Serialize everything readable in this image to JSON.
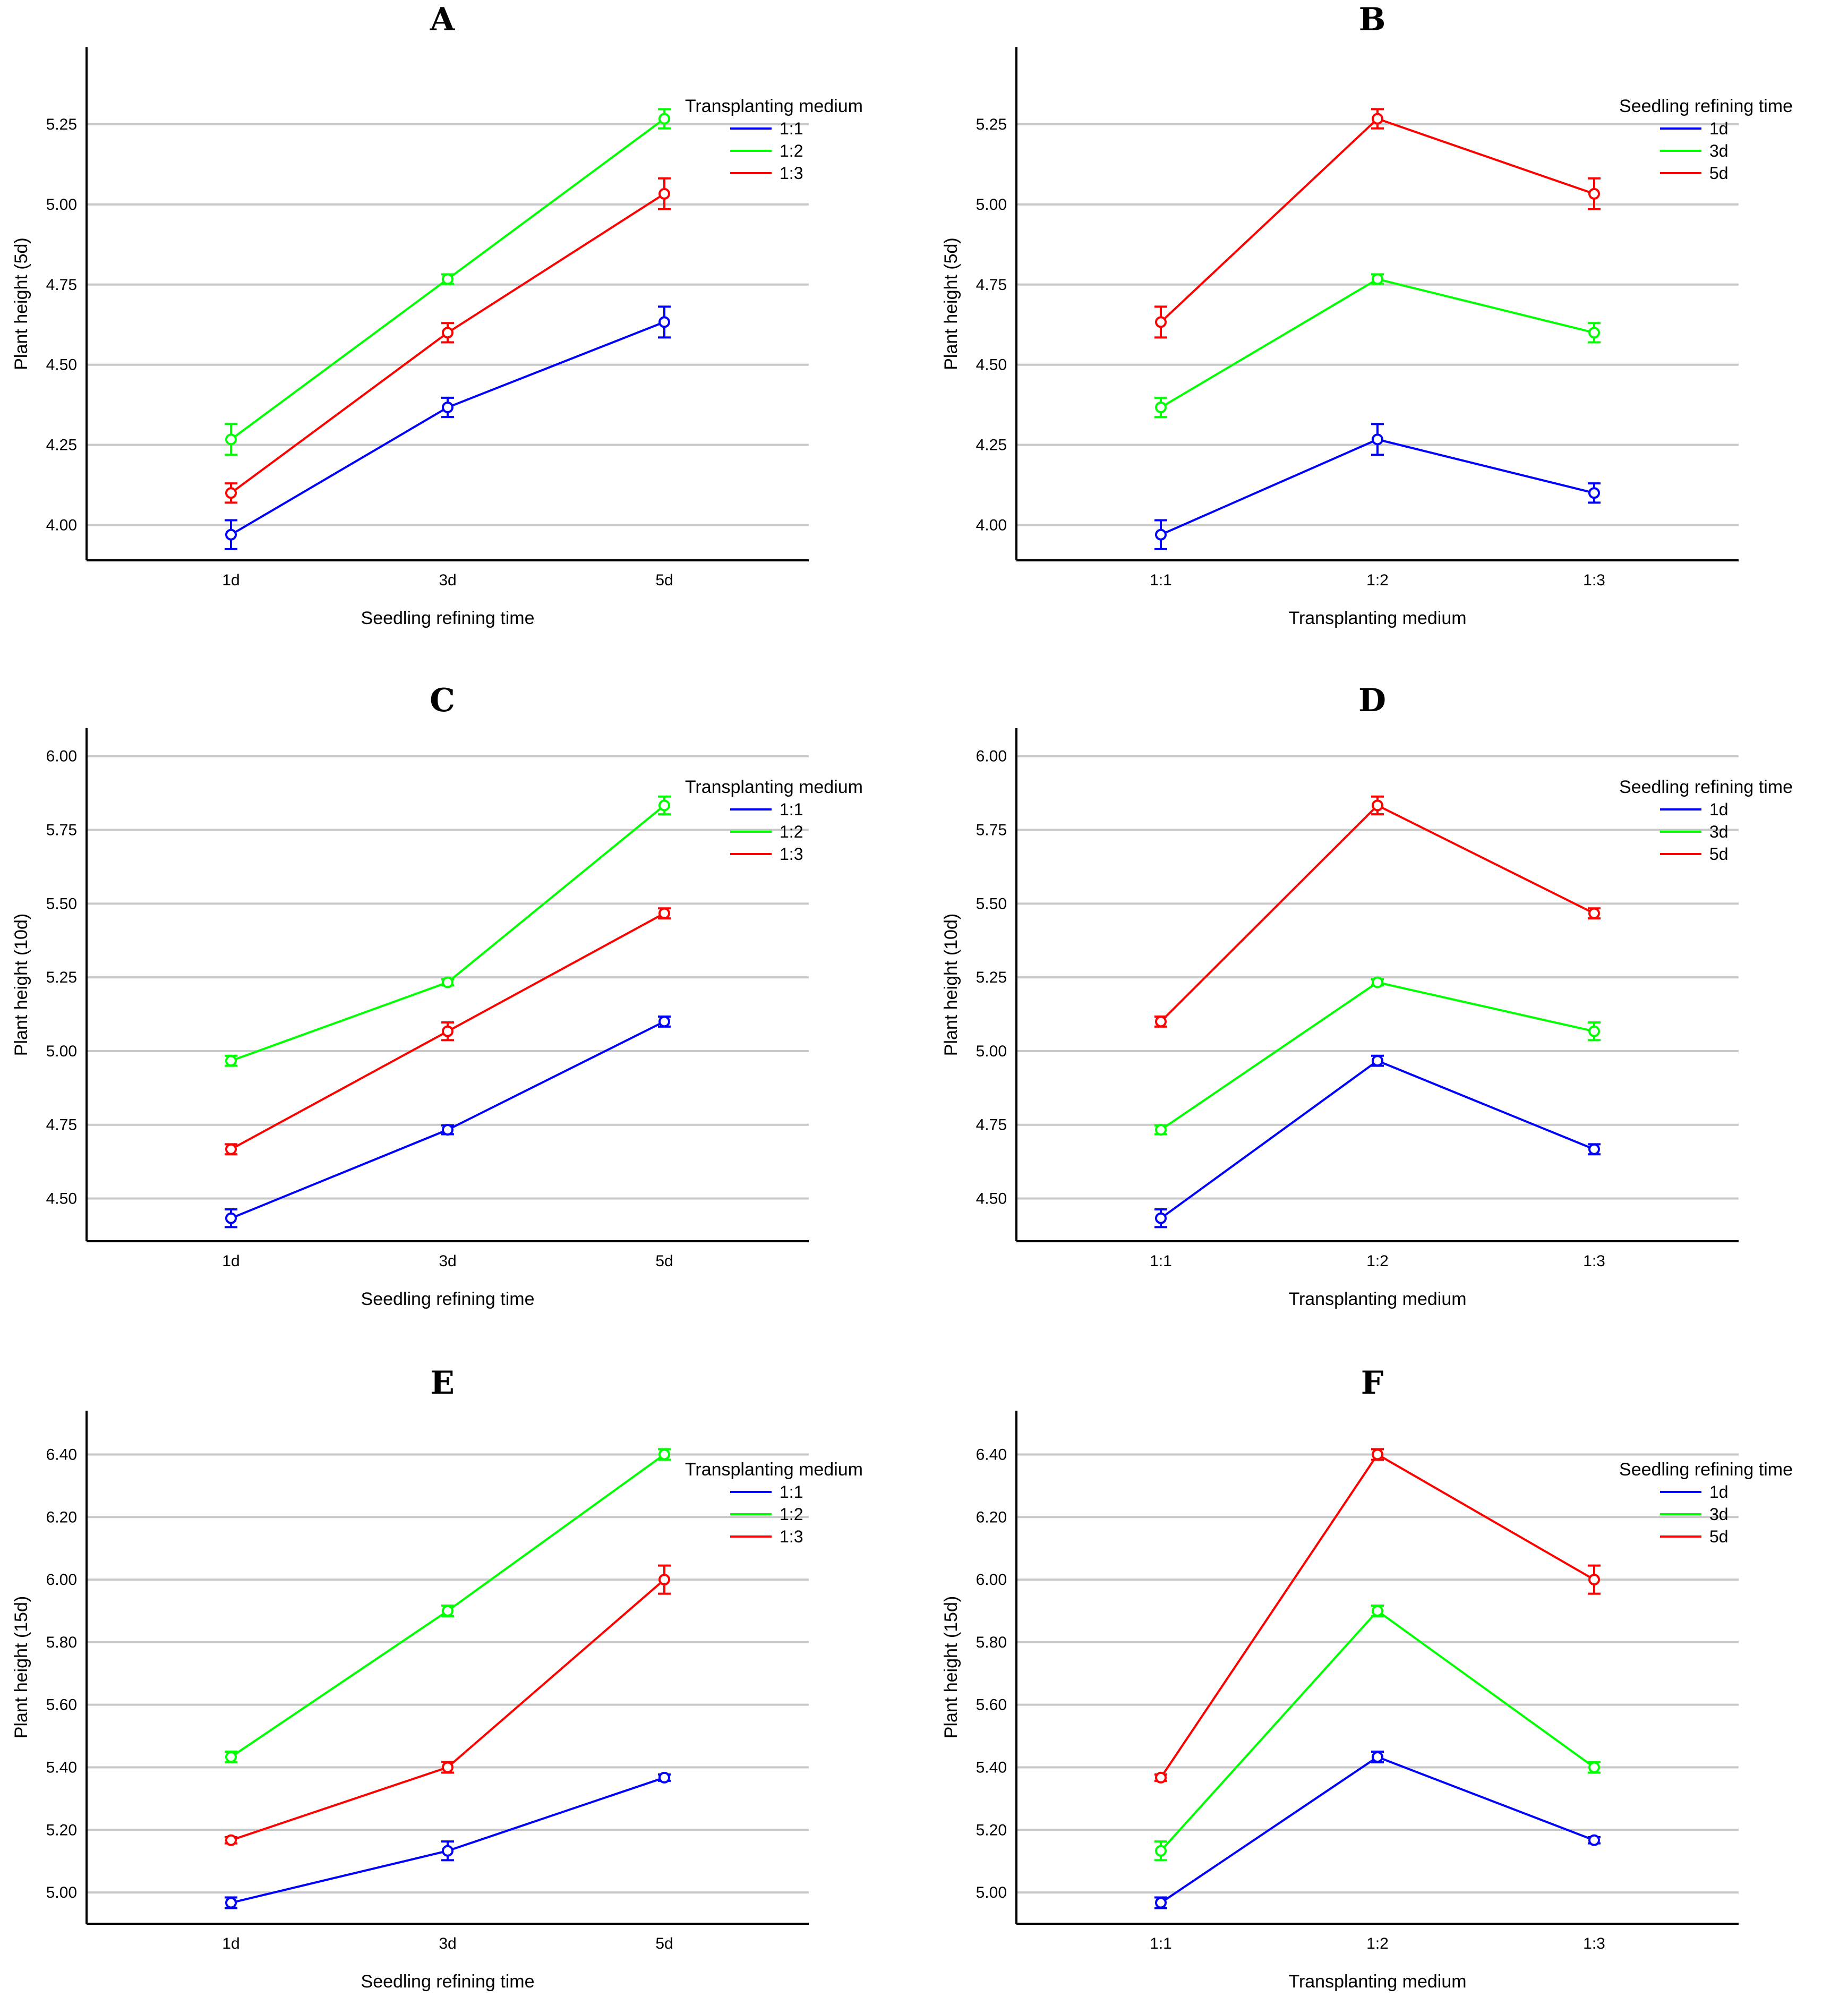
{
  "chart_data": [
    {
      "type": "line",
      "panel": "A",
      "xlabel": "Seedling refining time",
      "ylabel": "Plant height (5d)",
      "categories": [
        "1d",
        "3d",
        "5d"
      ],
      "legend_title": "Transplanting medium",
      "legend_position": "top-right",
      "ylim": [
        3.89,
        5.49
      ],
      "yticks": [
        4.0,
        4.25,
        4.5,
        4.75,
        5.0,
        5.25
      ],
      "yticklabels": [
        "4.00",
        "4.25",
        "4.50",
        "4.75",
        "5.00",
        "5.25"
      ],
      "grid": true,
      "series": [
        {
          "name": "1:1",
          "color": "#0000ff",
          "values": [
            3.97,
            4.367,
            4.633
          ],
          "err": [
            0.045,
            0.03,
            0.048
          ]
        },
        {
          "name": "1:2",
          "color": "#00ff00",
          "values": [
            4.267,
            4.767,
            5.267
          ],
          "err": [
            0.048,
            0.015,
            0.03
          ]
        },
        {
          "name": "1:3",
          "color": "#ff0000",
          "values": [
            4.1,
            4.6,
            5.033
          ],
          "err": [
            0.03,
            0.03,
            0.048
          ]
        }
      ]
    },
    {
      "type": "line",
      "panel": "B",
      "xlabel": "Transplanting medium",
      "ylabel": "Plant height (5d)",
      "categories": [
        "1:1",
        "1:2",
        "1:3"
      ],
      "legend_title": "Seedling refining time",
      "legend_position": "top-right",
      "ylim": [
        3.89,
        5.49
      ],
      "yticks": [
        4.0,
        4.25,
        4.5,
        4.75,
        5.0,
        5.25
      ],
      "yticklabels": [
        "4.00",
        "4.25",
        "4.50",
        "4.75",
        "5.00",
        "5.25"
      ],
      "grid": true,
      "series": [
        {
          "name": "1d",
          "color": "#0000ff",
          "values": [
            3.97,
            4.267,
            4.1
          ],
          "err": [
            0.045,
            0.048,
            0.03
          ]
        },
        {
          "name": "3d",
          "color": "#00ff00",
          "values": [
            4.367,
            4.767,
            4.6
          ],
          "err": [
            0.03,
            0.015,
            0.03
          ]
        },
        {
          "name": "5d",
          "color": "#ff0000",
          "values": [
            4.633,
            5.267,
            5.033
          ],
          "err": [
            0.048,
            0.03,
            0.048
          ]
        }
      ]
    },
    {
      "type": "line",
      "panel": "C",
      "xlabel": "Seedling refining time",
      "ylabel": "Plant height (10d)",
      "categories": [
        "1d",
        "3d",
        "5d"
      ],
      "legend_title": "Transplanting medium",
      "legend_position": "top-right",
      "ylim": [
        4.355,
        6.095
      ],
      "yticks": [
        4.5,
        4.75,
        5.0,
        5.25,
        5.5,
        5.75,
        6.0
      ],
      "yticklabels": [
        "4.50",
        "4.75",
        "5.00",
        "5.25",
        "5.50",
        "5.75",
        "6.00"
      ],
      "grid": true,
      "series": [
        {
          "name": "1:1",
          "color": "#0000ff",
          "values": [
            4.433,
            4.733,
            5.1
          ],
          "err": [
            0.03,
            0.015,
            0.017
          ]
        },
        {
          "name": "1:2",
          "color": "#00ff00",
          "values": [
            4.967,
            5.233,
            5.833
          ],
          "err": [
            0.017,
            0.01,
            0.03
          ]
        },
        {
          "name": "1:3",
          "color": "#ff0000",
          "values": [
            4.667,
            5.067,
            5.467
          ],
          "err": [
            0.017,
            0.03,
            0.017
          ]
        }
      ]
    },
    {
      "type": "line",
      "panel": "D",
      "xlabel": "Transplanting medium",
      "ylabel": "Plant height (10d)",
      "categories": [
        "1:1",
        "1:2",
        "1:3"
      ],
      "legend_title": "Seedling refining time",
      "legend_position": "top-right",
      "ylim": [
        4.355,
        6.095
      ],
      "yticks": [
        4.5,
        4.75,
        5.0,
        5.25,
        5.5,
        5.75,
        6.0
      ],
      "yticklabels": [
        "4.50",
        "4.75",
        "5.00",
        "5.25",
        "5.50",
        "5.75",
        "6.00"
      ],
      "grid": true,
      "series": [
        {
          "name": "1d",
          "color": "#0000ff",
          "values": [
            4.433,
            4.967,
            4.667
          ],
          "err": [
            0.03,
            0.017,
            0.017
          ]
        },
        {
          "name": "3d",
          "color": "#00ff00",
          "values": [
            4.733,
            5.233,
            5.067
          ],
          "err": [
            0.015,
            0.01,
            0.03
          ]
        },
        {
          "name": "5d",
          "color": "#ff0000",
          "values": [
            5.1,
            5.833,
            5.467
          ],
          "err": [
            0.017,
            0.03,
            0.017
          ]
        }
      ]
    },
    {
      "type": "line",
      "panel": "E",
      "xlabel": "Seedling refining time",
      "ylabel": "Plant height (15d)",
      "categories": [
        "1d",
        "3d",
        "5d"
      ],
      "legend_title": "Transplanting medium",
      "legend_position": "top-right",
      "ylim": [
        4.9,
        6.54
      ],
      "yticks": [
        5.0,
        5.2,
        5.4,
        5.6,
        5.8,
        6.0,
        6.2,
        6.4
      ],
      "yticklabels": [
        "5.00",
        "5.20",
        "5.40",
        "5.60",
        "5.80",
        "6.00",
        "6.20",
        "6.40"
      ],
      "grid": true,
      "series": [
        {
          "name": "1:1",
          "color": "#0000ff",
          "values": [
            4.967,
            5.133,
            5.367
          ],
          "err": [
            0.017,
            0.03,
            0.01
          ]
        },
        {
          "name": "1:2",
          "color": "#00ff00",
          "values": [
            5.433,
            5.9,
            6.4
          ],
          "err": [
            0.017,
            0.017,
            0.017
          ]
        },
        {
          "name": "1:3",
          "color": "#ff0000",
          "values": [
            5.167,
            5.4,
            6.0
          ],
          "err": [
            0.01,
            0.017,
            0.045
          ]
        }
      ]
    },
    {
      "type": "line",
      "panel": "F",
      "xlabel": "Transplanting medium",
      "ylabel": "Plant height (15d)",
      "categories": [
        "1:1",
        "1:2",
        "1:3"
      ],
      "legend_title": "Seedling refining time",
      "legend_position": "top-right",
      "ylim": [
        4.9,
        6.54
      ],
      "yticks": [
        5.0,
        5.2,
        5.4,
        5.6,
        5.8,
        6.0,
        6.2,
        6.4
      ],
      "yticklabels": [
        "5.00",
        "5.20",
        "5.40",
        "5.60",
        "5.80",
        "6.00",
        "6.20",
        "6.40"
      ],
      "grid": true,
      "series": [
        {
          "name": "1d",
          "color": "#0000ff",
          "values": [
            4.967,
            5.433,
            5.167
          ],
          "err": [
            0.017,
            0.017,
            0.01
          ]
        },
        {
          "name": "3d",
          "color": "#00ff00",
          "values": [
            5.133,
            5.9,
            5.4
          ],
          "err": [
            0.03,
            0.017,
            0.017
          ]
        },
        {
          "name": "5d",
          "color": "#ff0000",
          "values": [
            5.367,
            6.4,
            6.0
          ],
          "err": [
            0.01,
            0.017,
            0.045
          ]
        }
      ]
    }
  ]
}
